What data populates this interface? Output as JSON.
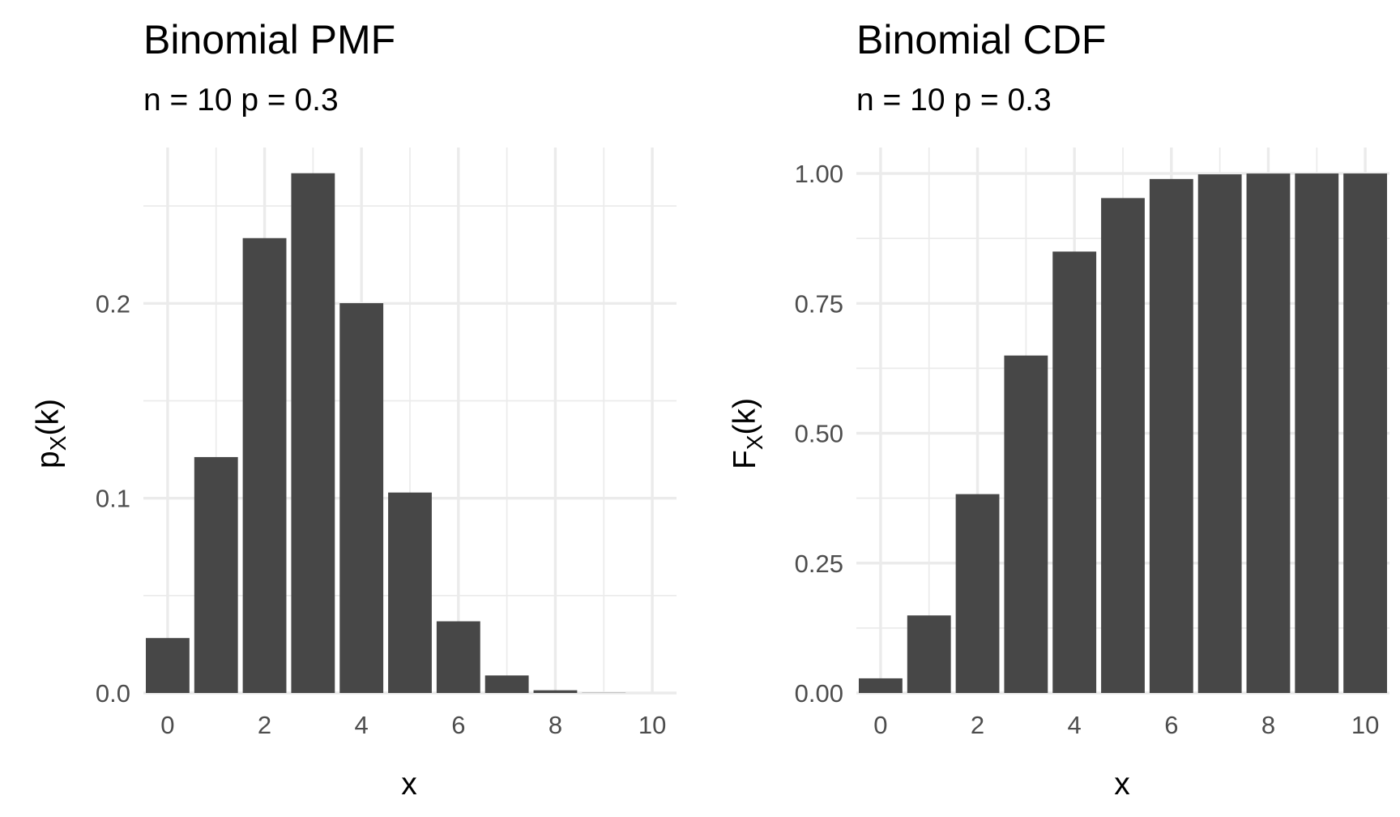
{
  "chart_data": [
    {
      "type": "bar",
      "title": "Binomial PMF",
      "subtitle": "n = 10 p = 0.3",
      "xlabel": "x",
      "ylabel": {
        "main": "p",
        "subscript": "X",
        "suffix": "(k)"
      },
      "categories": [
        0,
        1,
        2,
        3,
        4,
        5,
        6,
        7,
        8,
        9,
        10
      ],
      "values": [
        0.0282,
        0.1211,
        0.2335,
        0.2668,
        0.2001,
        0.1029,
        0.0368,
        0.009,
        0.0014,
        0.0001,
        0.0
      ],
      "xlim": [
        -0.5,
        10.5
      ],
      "ylim": [
        0,
        0.28
      ],
      "x_ticks": [
        "0",
        "2",
        "4",
        "6",
        "8",
        "10"
      ],
      "y_ticks": [
        "0.0",
        "0.1",
        "0.2"
      ],
      "grid": true
    },
    {
      "type": "bar",
      "title": "Binomial CDF",
      "subtitle": "n = 10 p = 0.3",
      "xlabel": "x",
      "ylabel": {
        "main": "F",
        "subscript": "X",
        "suffix": "(k)"
      },
      "categories": [
        0,
        1,
        2,
        3,
        4,
        5,
        6,
        7,
        8,
        9,
        10
      ],
      "values": [
        0.0282,
        0.1493,
        0.3828,
        0.6496,
        0.8497,
        0.9527,
        0.9894,
        0.9984,
        0.9999,
        1.0,
        1.0
      ],
      "xlim": [
        -0.5,
        10.5
      ],
      "ylim": [
        0,
        1.05
      ],
      "x_ticks": [
        "0",
        "2",
        "4",
        "6",
        "8",
        "10"
      ],
      "y_ticks": [
        "0.00",
        "0.25",
        "0.50",
        "0.75",
        "1.00"
      ],
      "grid": true
    }
  ]
}
